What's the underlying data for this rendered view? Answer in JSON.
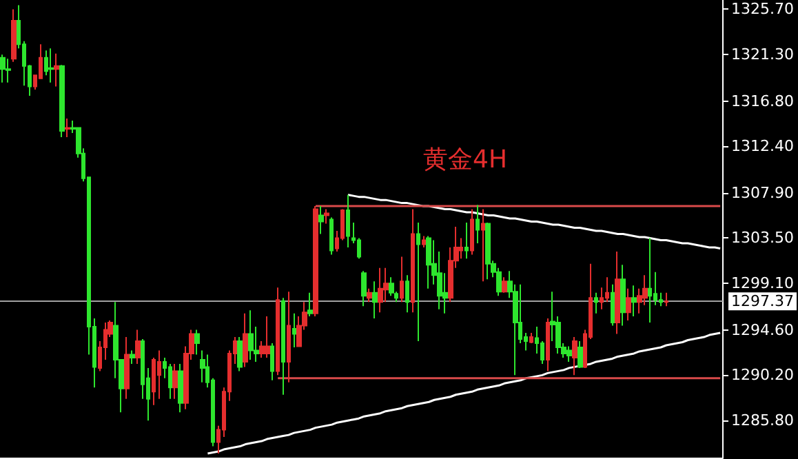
{
  "chart_data": {
    "type": "candlestick",
    "title": "黄金4H",
    "categories": [
      null,
      null,
      null,
      null,
      null,
      null,
      null,
      null,
      null,
      null,
      null,
      null,
      null,
      null,
      null,
      null,
      null,
      null,
      null,
      null,
      null,
      null,
      null,
      null,
      null,
      null,
      null,
      null,
      null,
      null,
      null,
      null,
      null,
      null,
      null,
      null,
      null,
      null,
      null,
      null,
      null,
      null,
      null,
      null,
      null,
      null,
      null,
      null,
      null,
      null,
      null,
      null,
      null,
      null,
      null,
      null,
      null,
      null,
      null,
      null,
      null,
      null,
      null,
      null,
      null,
      null,
      null,
      null,
      null,
      null,
      null,
      null,
      null,
      null,
      null,
      null,
      null,
      null,
      null,
      null,
      null,
      null,
      null,
      null,
      null,
      null,
      null,
      null,
      null,
      null,
      null,
      null,
      null,
      null,
      null,
      null,
      null,
      null,
      null,
      null,
      null,
      null,
      null,
      null,
      null,
      null,
      null,
      null,
      null,
      null,
      null,
      null,
      null,
      null,
      null,
      null,
      null,
      null,
      null,
      null,
      null,
      null,
      null,
      null,
      null,
      null,
      null,
      null,
      null,
      null,
      null,
      null,
      null,
      null
    ],
    "ohlc": [
      [
        1321.0,
        1321.3,
        1318.6,
        1319.9
      ],
      [
        1319.9,
        1320.9,
        1318.6,
        1319.8
      ],
      [
        1320.9,
        1325.7,
        1320.6,
        1324.6
      ],
      [
        1324.6,
        1326.1,
        1321.9,
        1322.3
      ],
      [
        1322.3,
        1322.6,
        1318.3,
        1320.2
      ],
      [
        1320.2,
        1320.3,
        1317.3,
        1318.2
      ],
      [
        1318.2,
        1319.3,
        1317.9,
        1319.3
      ],
      [
        1319.0,
        1322.3,
        1319.0,
        1321.0
      ],
      [
        1321.0,
        1321.7,
        1319.3,
        1319.7
      ],
      [
        1320.0,
        1321.9,
        1318.6,
        1319.9
      ],
      [
        1319.9,
        1321.4,
        1318.2,
        1320.2
      ],
      [
        1320.2,
        1320.3,
        1313.3,
        1313.9
      ],
      [
        1314.1,
        1315.1,
        1313.3,
        1314.2
      ],
      [
        1314.2,
        1314.9,
        1313.7,
        1314.1
      ],
      [
        1314.2,
        1314.2,
        1311.3,
        1311.7
      ],
      [
        1311.7,
        1312.2,
        1309.0,
        1309.3
      ],
      [
        1309.4,
        1309.4,
        1292.2,
        1294.9
      ],
      [
        1294.9,
        1295.7,
        1289.0,
        1291.0
      ],
      [
        1290.9,
        1293.5,
        1290.6,
        1292.9
      ],
      [
        1292.9,
        1295.3,
        1291.7,
        1294.6
      ],
      [
        1294.2,
        1295.5,
        1293.9,
        1295.3
      ],
      [
        1295.0,
        1297.3,
        1289.9,
        1291.7
      ],
      [
        1291.7,
        1291.7,
        1286.6,
        1288.9
      ],
      [
        1288.9,
        1293.9,
        1287.9,
        1292.2
      ],
      [
        1292.2,
        1292.6,
        1291.3,
        1291.9
      ],
      [
        1291.9,
        1294.6,
        1291.3,
        1293.5
      ],
      [
        1293.5,
        1293.7,
        1287.9,
        1289.3
      ],
      [
        1289.9,
        1290.9,
        1285.8,
        1287.9
      ],
      [
        1288.6,
        1291.9,
        1287.3,
        1291.7
      ],
      [
        1290.2,
        1292.6,
        1287.9,
        1291.5
      ],
      [
        1291.5,
        1291.9,
        1289.9,
        1290.9
      ],
      [
        1291.0,
        1291.3,
        1287.9,
        1289.0
      ],
      [
        1289.0,
        1291.3,
        1287.9,
        1290.6
      ],
      [
        1290.6,
        1291.3,
        1286.6,
        1287.5
      ],
      [
        1287.5,
        1293.0,
        1286.9,
        1292.3
      ],
      [
        1292.3,
        1294.6,
        1291.7,
        1294.2
      ],
      [
        1294.2,
        1294.6,
        1292.2,
        1293.3
      ],
      [
        1291.7,
        1292.6,
        1289.5,
        1290.9
      ],
      [
        1291.0,
        1292.2,
        1289.0,
        1289.5
      ],
      [
        1289.7,
        1289.9,
        1283.3,
        1283.7
      ],
      [
        1283.7,
        1285.3,
        1282.6,
        1284.9
      ],
      [
        1284.9,
        1289.0,
        1284.2,
        1288.6
      ],
      [
        1288.6,
        1292.6,
        1287.7,
        1292.3
      ],
      [
        1292.3,
        1293.9,
        1291.3,
        1293.5
      ],
      [
        1293.5,
        1293.9,
        1290.6,
        1291.0
      ],
      [
        1291.5,
        1296.2,
        1291.0,
        1294.2
      ],
      [
        1294.2,
        1296.5,
        1291.7,
        1292.6
      ],
      [
        1292.6,
        1294.9,
        1291.5,
        1292.3
      ],
      [
        1292.3,
        1293.5,
        1291.9,
        1293.0
      ],
      [
        1292.3,
        1295.9,
        1291.9,
        1293.0
      ],
      [
        1293.0,
        1293.3,
        1289.7,
        1290.6
      ],
      [
        1290.6,
        1298.7,
        1290.2,
        1297.5
      ],
      [
        1297.4,
        1297.7,
        1288.3,
        1291.5
      ],
      [
        1291.5,
        1298.3,
        1289.5,
        1295.0
      ],
      [
        1294.7,
        1296.2,
        1292.9,
        1294.2
      ],
      [
        1293.0,
        1295.9,
        1293.0,
        1295.0
      ],
      [
        1295.0,
        1297.3,
        1294.6,
        1296.3
      ],
      [
        1296.5,
        1298.2,
        1295.9,
        1296.2
      ],
      [
        1296.2,
        1306.6,
        1295.9,
        1306.3
      ],
      [
        1305.7,
        1306.6,
        1303.9,
        1305.1
      ],
      [
        1305.7,
        1306.3,
        1304.9,
        1305.9
      ],
      [
        1305.3,
        1305.5,
        1301.9,
        1302.3
      ],
      [
        1302.5,
        1304.2,
        1302.2,
        1303.5
      ],
      [
        1303.5,
        1306.3,
        1303.3,
        1306.2
      ],
      [
        1306.2,
        1307.7,
        1302.6,
        1303.7
      ],
      [
        1303.5,
        1305.0,
        1303.0,
        1303.3
      ],
      [
        1303.3,
        1303.5,
        1301.5,
        1301.7
      ],
      [
        1300.1,
        1300.3,
        1296.9,
        1297.9
      ],
      [
        1297.7,
        1298.6,
        1297.3,
        1298.2
      ],
      [
        1298.2,
        1299.3,
        1295.7,
        1297.3
      ],
      [
        1297.3,
        1300.6,
        1296.3,
        1298.6
      ],
      [
        1298.5,
        1300.6,
        1297.3,
        1299.1
      ],
      [
        1299.1,
        1299.7,
        1297.9,
        1298.2
      ],
      [
        1298.1,
        1298.3,
        1297.3,
        1297.7
      ],
      [
        1297.7,
        1301.7,
        1297.3,
        1299.3
      ],
      [
        1299.3,
        1299.9,
        1296.3,
        1297.3
      ],
      [
        1297.3,
        1306.3,
        1296.3,
        1303.9
      ],
      [
        1303.9,
        1305.0,
        1293.5,
        1302.9
      ],
      [
        1302.9,
        1303.7,
        1302.6,
        1303.3
      ],
      [
        1303.5,
        1303.7,
        1298.6,
        1300.9
      ],
      [
        1301.0,
        1303.3,
        1299.0,
        1299.9
      ],
      [
        1300.1,
        1302.2,
        1296.6,
        1297.9
      ],
      [
        1298.2,
        1300.1,
        1296.2,
        1297.7
      ],
      [
        1297.7,
        1302.6,
        1297.3,
        1301.3
      ],
      [
        1301.3,
        1304.6,
        1300.6,
        1302.6
      ],
      [
        1302.3,
        1303.5,
        1301.5,
        1302.6
      ],
      [
        1302.6,
        1305.0,
        1301.5,
        1302.3
      ],
      [
        1302.3,
        1306.3,
        1301.9,
        1305.3
      ],
      [
        1305.3,
        1306.7,
        1303.0,
        1304.3
      ],
      [
        1304.3,
        1306.3,
        1299.3,
        1304.9
      ],
      [
        1304.9,
        1305.0,
        1299.5,
        1301.0
      ],
      [
        1301.0,
        1301.3,
        1299.7,
        1300.2
      ],
      [
        1300.2,
        1300.6,
        1297.9,
        1298.3
      ],
      [
        1298.3,
        1299.7,
        1298.2,
        1299.3
      ],
      [
        1299.3,
        1300.3,
        1297.7,
        1298.3
      ],
      [
        1298.3,
        1299.0,
        1290.2,
        1295.3
      ],
      [
        1295.3,
        1299.0,
        1293.3,
        1293.7
      ],
      [
        1293.9,
        1294.3,
        1292.6,
        1293.5
      ],
      [
        1293.4,
        1294.3,
        1293.3,
        1293.9
      ],
      [
        1293.8,
        1294.9,
        1292.3,
        1293.3
      ],
      [
        1293.3,
        1293.5,
        1291.3,
        1291.7
      ],
      [
        1291.7,
        1295.7,
        1290.6,
        1295.3
      ],
      [
        1295.4,
        1298.3,
        1293.5,
        1295.1
      ],
      [
        1295.3,
        1295.9,
        1292.3,
        1292.9
      ],
      [
        1292.9,
        1293.3,
        1291.9,
        1292.3
      ],
      [
        1292.6,
        1293.0,
        1291.5,
        1292.1
      ],
      [
        1291.9,
        1293.9,
        1290.2,
        1293.5
      ],
      [
        1292.9,
        1293.5,
        1290.9,
        1291.0
      ],
      [
        1291.0,
        1294.6,
        1290.9,
        1294.2
      ],
      [
        1293.9,
        1301.0,
        1293.7,
        1297.7
      ],
      [
        1297.7,
        1298.2,
        1296.2,
        1297.3
      ],
      [
        1297.3,
        1298.7,
        1296.6,
        1297.7
      ],
      [
        1297.7,
        1299.7,
        1297.3,
        1298.2
      ],
      [
        1298.2,
        1299.0,
        1295.0,
        1295.3
      ],
      [
        1295.3,
        1302.2,
        1294.2,
        1299.5
      ],
      [
        1299.5,
        1300.9,
        1295.0,
        1296.3
      ],
      [
        1296.3,
        1298.6,
        1295.5,
        1297.7
      ],
      [
        1297.7,
        1298.9,
        1295.9,
        1297.3
      ],
      [
        1297.3,
        1298.6,
        1296.2,
        1297.9
      ],
      [
        1297.7,
        1299.9,
        1297.0,
        1298.6
      ],
      [
        1298.6,
        1303.5,
        1295.3,
        1297.9
      ],
      [
        1298.1,
        1300.2,
        1297.0,
        1297.5
      ],
      [
        1297.5,
        1298.2,
        1296.9,
        1297.3
      ],
      [
        1297.3,
        1298.2,
        1296.9,
        1297.37
      ],
      null,
      null,
      null,
      null,
      null,
      null,
      null,
      null,
      null,
      null
    ],
    "colors": [
      "#2ee62e",
      "#2ee62e",
      "#e52e2e",
      "#2ee62e",
      "#2ee62e",
      "#2ee62e",
      "#e52e2e",
      "#e52e2e",
      "#2ee62e",
      "#2ee62e",
      "#e52e2e",
      "#2ee62e",
      "#e52e2e",
      "#2ee62e",
      "#2ee62e",
      "#2ee62e",
      "#2ee62e",
      "#2ee62e",
      "#e52e2e",
      "#e52e2e",
      "#e52e2e",
      "#2ee62e",
      "#2ee62e",
      "#e52e2e",
      "#2ee62e",
      "#e52e2e",
      "#2ee62e",
      "#2ee62e",
      "#e52e2e",
      "#e52e2e",
      "#2ee62e",
      "#2ee62e",
      "#e52e2e",
      "#2ee62e",
      "#e52e2e",
      "#e52e2e",
      "#2ee62e",
      "#2ee62e",
      "#2ee62e",
      "#2ee62e",
      "#e52e2e",
      "#e52e2e",
      "#e52e2e",
      "#e52e2e",
      "#2ee62e",
      "#e52e2e",
      "#2ee62e",
      "#2ee62e",
      "#e52e2e",
      "#e52e2e",
      "#2ee62e",
      "#e52e2e",
      "#2ee62e",
      "#e52e2e",
      "#2ee62e",
      "#e52e2e",
      "#e52e2e",
      "#2ee62e",
      "#e52e2e",
      "#2ee62e",
      "#e52e2e",
      "#2ee62e",
      "#e52e2e",
      "#e52e2e",
      "#2ee62e",
      "#2ee62e",
      "#2ee62e",
      "#2ee62e",
      "#e52e2e",
      "#2ee62e",
      "#e52e2e",
      "#e52e2e",
      "#2ee62e",
      "#2ee62e",
      "#e52e2e",
      "#2ee62e",
      "#e52e2e",
      "#2ee62e",
      "#e52e2e",
      "#2ee62e",
      "#2ee62e",
      "#2ee62e",
      "#2ee62e",
      "#e52e2e",
      "#e52e2e",
      "#e52e2e",
      "#2ee62e",
      "#e52e2e",
      "#2ee62e",
      "#e52e2e",
      "#2ee62e",
      "#2ee62e",
      "#2ee62e",
      "#e52e2e",
      "#2ee62e",
      "#2ee62e",
      "#2ee62e",
      "#2ee62e",
      "#e52e2e",
      "#2ee62e",
      "#2ee62e",
      "#e52e2e",
      "#2ee62e",
      "#2ee62e",
      "#2ee62e",
      "#2ee62e",
      "#e52e2e",
      "#2ee62e",
      "#e52e2e",
      "#e52e2e",
      "#2ee62e",
      "#e52e2e",
      "#e52e2e",
      "#2ee62e",
      "#e52e2e",
      "#2ee62e",
      "#e52e2e",
      "#2ee62e",
      "#e52e2e",
      "#e52e2e",
      "#2ee62e",
      "#2ee62e",
      "#2ee62e",
      "#e52e2e",
      null,
      null,
      null,
      null,
      null,
      null,
      null,
      null,
      null,
      null
    ],
    "series": [
      {
        "type": "line",
        "color": "#ffffff",
        "values": [
          null,
          null,
          null,
          null,
          null,
          null,
          null,
          null,
          null,
          null,
          null,
          null,
          null,
          null,
          null,
          null,
          null,
          null,
          null,
          null,
          null,
          null,
          null,
          null,
          null,
          null,
          null,
          null,
          null,
          null,
          null,
          null,
          null,
          null,
          null,
          null,
          null,
          null,
          null,
          null,
          null,
          null,
          null,
          null,
          null,
          null,
          null,
          null,
          null,
          null,
          null,
          null,
          null,
          null,
          null,
          null,
          null,
          null,
          null,
          null,
          null,
          null,
          null,
          null,
          1307.7,
          1307.6,
          1307.5,
          1307.5,
          1307.4,
          1307.3,
          1307.2,
          1307.2,
          1307.1,
          1307.0,
          1306.9,
          1306.9,
          1306.8,
          1306.7,
          1306.6,
          1306.6,
          1306.5,
          1306.4,
          1306.3,
          1306.3,
          1306.2,
          1306.1,
          1306.0,
          1306.0,
          1305.9,
          1305.8,
          1305.7,
          1305.7,
          1305.6,
          1305.5,
          1305.4,
          1305.4,
          1305.3,
          1305.2,
          1305.1,
          1305.1,
          1305.0,
          1304.9,
          1304.8,
          1304.8,
          1304.7,
          1304.6,
          1304.5,
          1304.5,
          1304.4,
          1304.3,
          1304.2,
          1304.2,
          1304.1,
          1304.0,
          1303.9,
          1303.9,
          1303.8,
          1303.7,
          1303.6,
          1303.6,
          1303.5,
          1303.4,
          1303.3,
          1303.3,
          1303.2,
          1303.1,
          1303.0,
          1303.0,
          1302.9,
          1302.8,
          1302.7,
          1302.6,
          1302.6,
          1302.5
        ]
      },
      {
        "type": "line",
        "color": "#ffffff",
        "values": [
          null,
          null,
          null,
          null,
          null,
          null,
          null,
          null,
          null,
          null,
          null,
          null,
          null,
          null,
          null,
          null,
          null,
          null,
          null,
          null,
          null,
          null,
          null,
          null,
          null,
          null,
          null,
          null,
          null,
          null,
          null,
          null,
          null,
          null,
          null,
          null,
          null,
          null,
          1282.6,
          1282.7,
          1282.8,
          1283.0,
          1283.1,
          1283.2,
          1283.3,
          1283.5,
          1283.6,
          1283.7,
          1283.8,
          1284.0,
          1284.1,
          1284.2,
          1284.3,
          1284.4,
          1284.6,
          1284.7,
          1284.8,
          1284.9,
          1285.1,
          1285.2,
          1285.3,
          1285.4,
          1285.6,
          1285.7,
          1285.8,
          1285.9,
          1286.0,
          1286.2,
          1286.3,
          1286.4,
          1286.5,
          1286.7,
          1286.8,
          1286.9,
          1287.0,
          1287.2,
          1287.3,
          1287.4,
          1287.5,
          1287.6,
          1287.8,
          1287.9,
          1288.0,
          1288.1,
          1288.3,
          1288.4,
          1288.5,
          1288.6,
          1288.8,
          1288.9,
          1289.0,
          1289.1,
          1289.2,
          1289.4,
          1289.5,
          1289.6,
          1289.7,
          1289.9,
          1290.0,
          1290.1,
          1290.2,
          1290.4,
          1290.5,
          1290.6,
          1290.7,
          1290.9,
          1291.0,
          1291.1,
          1291.2,
          1291.3,
          1291.5,
          1291.6,
          1291.7,
          1291.8,
          1292.0,
          1292.1,
          1292.2,
          1292.3,
          1292.5,
          1292.6,
          1292.7,
          1292.8,
          1292.9,
          1293.1,
          1293.2,
          1293.3,
          1293.4,
          1293.6,
          1293.7,
          1293.8,
          1293.9,
          1294.1,
          1294.2,
          1294.3
        ]
      },
      {
        "type": "line",
        "color": "#d94a4a",
        "values": [
          null,
          null,
          null,
          null,
          null,
          null,
          null,
          null,
          null,
          null,
          null,
          null,
          null,
          null,
          null,
          null,
          null,
          null,
          null,
          null,
          null,
          null,
          null,
          null,
          null,
          null,
          null,
          null,
          null,
          null,
          null,
          null,
          null,
          null,
          null,
          null,
          null,
          null,
          null,
          null,
          null,
          null,
          null,
          null,
          null,
          null,
          null,
          null,
          null,
          null,
          null,
          null,
          null,
          null,
          null,
          null,
          null,
          null,
          1306.6,
          1306.6,
          1306.6,
          1306.6,
          1306.6,
          1306.6,
          1306.6,
          1306.6,
          1306.6,
          1306.6,
          1306.6,
          1306.6,
          1306.6,
          1306.6,
          1306.6,
          1306.6,
          1306.6,
          1306.6,
          1306.6,
          1306.6,
          1306.6,
          1306.6,
          1306.6,
          1306.6,
          1306.6,
          1306.6,
          1306.6,
          1306.6,
          1306.6,
          1306.6,
          1306.6,
          1306.6,
          1306.6,
          1306.6,
          1306.6,
          1306.6,
          1306.6,
          1306.6,
          1306.6,
          1306.6,
          1306.6,
          1306.6,
          1306.6,
          1306.6,
          1306.6,
          1306.6,
          1306.6,
          1306.6,
          1306.6,
          1306.6,
          1306.6,
          1306.6,
          1306.6,
          1306.6,
          1306.6,
          1306.6,
          1306.6,
          1306.6,
          1306.6,
          1306.6,
          1306.6,
          1306.6,
          1306.6,
          1306.6,
          1306.6,
          1306.6,
          1306.6,
          1306.6,
          1306.6,
          1306.6,
          1306.6,
          1306.6,
          1306.6,
          1306.6,
          1306.6,
          1306.6
        ]
      },
      {
        "type": "line",
        "color": "#d94a4a",
        "values": [
          null,
          null,
          null,
          null,
          null,
          null,
          null,
          null,
          null,
          null,
          null,
          null,
          null,
          null,
          null,
          null,
          null,
          null,
          null,
          null,
          null,
          null,
          null,
          null,
          null,
          null,
          null,
          null,
          null,
          null,
          null,
          null,
          null,
          null,
          null,
          null,
          null,
          null,
          null,
          null,
          null,
          null,
          null,
          null,
          null,
          null,
          null,
          null,
          null,
          null,
          null,
          1289.9,
          1289.9,
          1289.9,
          1289.9,
          1289.9,
          1289.9,
          1289.9,
          1289.9,
          1289.9,
          1289.9,
          1289.9,
          1289.9,
          1289.9,
          1289.9,
          1289.9,
          1289.9,
          1289.9,
          1289.9,
          1289.9,
          1289.9,
          1289.9,
          1289.9,
          1289.9,
          1289.9,
          1289.9,
          1289.9,
          1289.9,
          1289.9,
          1289.9,
          1289.9,
          1289.9,
          1289.9,
          1289.9,
          1289.9,
          1289.9,
          1289.9,
          1289.9,
          1289.9,
          1289.9,
          1289.9,
          1289.9,
          1289.9,
          1289.9,
          1289.9,
          1289.9,
          1289.9,
          1289.9,
          1289.9,
          1289.9,
          1289.9,
          1289.9,
          1289.9,
          1289.9,
          1289.9,
          1289.9,
          1289.9,
          1289.9,
          1289.9,
          1289.9,
          1289.9,
          1289.9,
          1289.9,
          1289.9,
          1289.9,
          1289.9,
          1289.9,
          1289.9,
          1289.9,
          1289.9,
          1289.9,
          1289.9,
          1289.9,
          1289.9,
          1289.9,
          1289.9,
          1289.9,
          1289.9,
          1289.9,
          1289.9,
          1289.9,
          1289.9,
          1289.9,
          1289.9
        ]
      }
    ],
    "ylim": [
      1282.2,
      1326.6
    ],
    "yticks": [
      {
        "value": 1325.7,
        "label": "1325.70"
      },
      {
        "value": 1321.3,
        "label": "1321.30"
      },
      {
        "value": 1316.8,
        "label": "1316.80"
      },
      {
        "value": 1312.4,
        "label": "1312.40"
      },
      {
        "value": 1307.9,
        "label": "1307.90"
      },
      {
        "value": 1303.5,
        "label": "1303.50"
      },
      {
        "value": 1299.1,
        "label": "1299.10"
      },
      {
        "value": 1294.6,
        "label": "1294.60"
      },
      {
        "value": 1290.2,
        "label": "1290.20"
      },
      {
        "value": 1285.8,
        "label": "1285.80"
      }
    ],
    "ref_lines": [
      {
        "axis": "y",
        "value": 1297.37,
        "label": "1297.37",
        "color": "#a0a0a0"
      }
    ],
    "tick_labels": "y"
  }
}
